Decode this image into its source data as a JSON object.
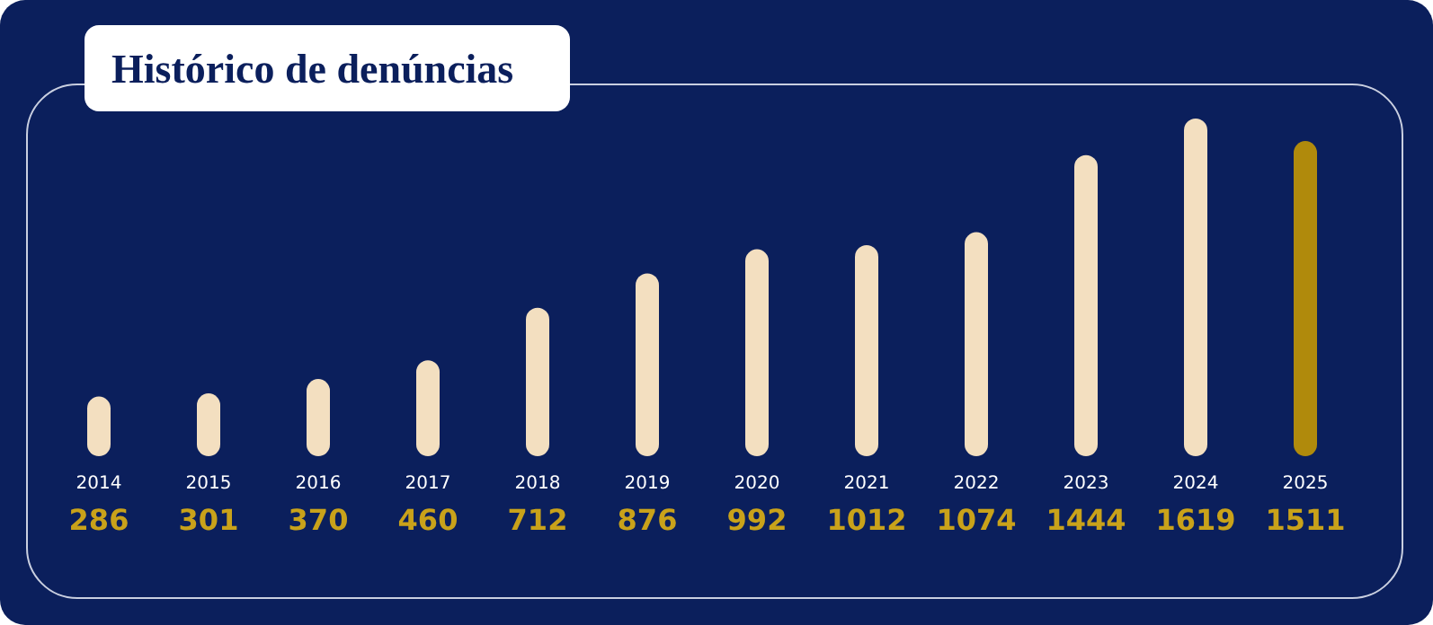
{
  "chart_data": {
    "type": "bar",
    "title": "Histórico de denúncias",
    "categories": [
      "2014",
      "2015",
      "2016",
      "2017",
      "2018",
      "2019",
      "2020",
      "2021",
      "2022",
      "2023",
      "2024",
      "2025"
    ],
    "values": [
      286,
      301,
      370,
      460,
      712,
      876,
      992,
      1012,
      1074,
      1444,
      1619,
      1511
    ],
    "colors": [
      "#f3dfc0",
      "#f3dfc0",
      "#f3dfc0",
      "#f3dfc0",
      "#f3dfc0",
      "#f3dfc0",
      "#f3dfc0",
      "#f3dfc0",
      "#f3dfc0",
      "#f3dfc0",
      "#f3dfc0",
      "#b08a0c"
    ],
    "data_labels": true
  }
}
